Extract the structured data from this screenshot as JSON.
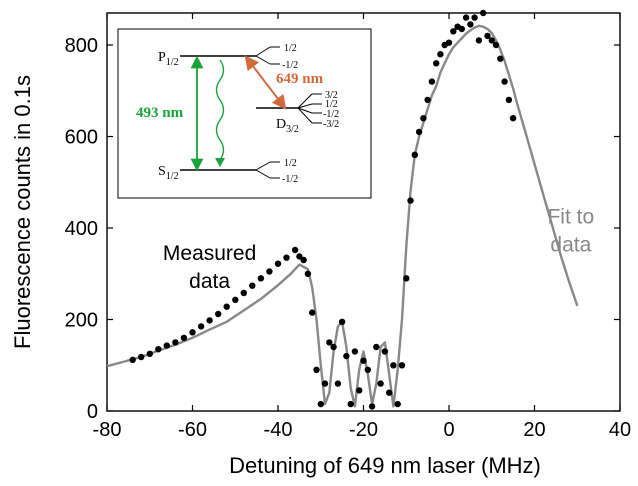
{
  "chart_data": {
    "type": "scatter",
    "xlabel": "Detuning of 649 nm laser  (MHz)",
    "ylabel": "Fluorescence counts in 0.1s",
    "xlim": [
      -80,
      40
    ],
    "ylim": [
      0,
      870
    ],
    "x_ticks": [
      "-80",
      "-60",
      "-40",
      "-20",
      "0",
      "20",
      "40"
    ],
    "y_ticks": [
      "0",
      "200",
      "400",
      "600",
      "800"
    ],
    "grid": false,
    "colors": {
      "measured": "#000000",
      "fit": "#888888",
      "green_arrow": "#1aa33a",
      "orange_arrow": "#d2693c"
    },
    "series": [
      {
        "name": "Measured data",
        "style": "points",
        "x": [
          -74,
          -72,
          -70,
          -68,
          -66,
          -64,
          -62,
          -60,
          -58,
          -56,
          -54,
          -52,
          -50,
          -48,
          -46,
          -44,
          -42,
          -40,
          -38,
          -36,
          -35,
          -34,
          -33,
          -32,
          -31,
          -30,
          -29,
          -28,
          -27,
          -26,
          -25,
          -24,
          -23,
          -22,
          -21,
          -20,
          -19,
          -18,
          -17,
          -16,
          -15,
          -14,
          -13,
          -12,
          -11,
          -10,
          -9,
          -8,
          -7,
          -6,
          -5,
          -4,
          -3,
          -2,
          -1,
          0,
          1,
          2,
          3,
          4,
          5,
          6,
          7,
          8,
          9,
          10,
          11,
          12,
          13,
          14,
          15
        ],
        "y": [
          112,
          118,
          125,
          135,
          143,
          150,
          160,
          172,
          185,
          198,
          212,
          228,
          243,
          258,
          274,
          290,
          305,
          322,
          335,
          352,
          338,
          330,
          300,
          215,
          90,
          15,
          60,
          150,
          140,
          60,
          195,
          120,
          15,
          130,
          45,
          110,
          90,
          10,
          140,
          60,
          130,
          40,
          100,
          15,
          100,
          290,
          460,
          560,
          610,
          640,
          680,
          720,
          760,
          780,
          800,
          805,
          830,
          840,
          835,
          860,
          845,
          860,
          810,
          870,
          820,
          810,
          800,
          770,
          720,
          680,
          640
        ]
      },
      {
        "name": "Fit to data",
        "style": "line",
        "x": [
          -80,
          -76,
          -72,
          -68,
          -64,
          -60,
          -56,
          -52,
          -48,
          -44,
          -40,
          -37,
          -35,
          -33,
          -32,
          -31,
          -30,
          -29,
          -28,
          -27,
          -26,
          -25,
          -24,
          -23,
          -22,
          -21,
          -20,
          -19,
          -18,
          -17,
          -16,
          -15,
          -14,
          -13,
          -12,
          -11,
          -10,
          -9,
          -8,
          -7,
          -6,
          -5,
          -4,
          -3,
          -2,
          -1,
          0,
          1,
          2,
          3,
          4,
          5,
          6,
          7,
          8,
          9,
          10,
          11,
          12,
          13,
          14,
          15,
          16,
          18,
          20,
          22,
          24,
          26,
          28,
          30
        ],
        "y": [
          98,
          108,
          118,
          132,
          145,
          160,
          178,
          195,
          220,
          245,
          275,
          300,
          320,
          310,
          270,
          200,
          100,
          15,
          40,
          130,
          185,
          195,
          140,
          50,
          10,
          90,
          130,
          80,
          15,
          60,
          140,
          150,
          80,
          10,
          90,
          200,
          360,
          480,
          560,
          600,
          630,
          660,
          690,
          710,
          740,
          760,
          780,
          795,
          805,
          815,
          825,
          832,
          838,
          842,
          840,
          835,
          826,
          810,
          790,
          765,
          735,
          705,
          670,
          605,
          540,
          475,
          410,
          345,
          285,
          230
        ]
      }
    ],
    "annotations": [
      {
        "text_lines": [
          "Measured",
          "data"
        ],
        "color": "#000000",
        "at": [
          -56,
          330
        ]
      },
      {
        "text_lines": [
          "Fit to",
          "data"
        ],
        "color": "#888888",
        "at": [
          28.5,
          410
        ]
      }
    ],
    "inset": {
      "levels": [
        "P1/2",
        "D3/2",
        "S1/2"
      ],
      "P_label": {
        "main": "P",
        "sub": "1/2"
      },
      "D_label": {
        "main": "D",
        "sub": "3/2"
      },
      "S_label": {
        "main": "S",
        "sub": "1/2"
      },
      "P_sublevels": [
        "1/2",
        "-1/2"
      ],
      "D_sublevels": [
        "3/2",
        "1/2",
        "-1/2",
        "-3/2"
      ],
      "S_sublevels": [
        "1/2",
        "-1/2"
      ],
      "transition_493": "493 nm",
      "transition_649": "649 nm"
    }
  }
}
